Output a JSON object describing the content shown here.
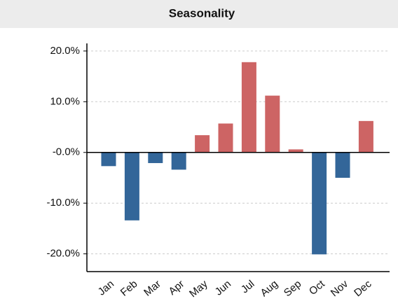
{
  "chart_data": {
    "type": "bar",
    "title": "Seasonality",
    "categories": [
      "Jan",
      "Feb",
      "Mar",
      "Apr",
      "May",
      "Jun",
      "Jul",
      "Aug",
      "Sep",
      "Oct",
      "Nov",
      "Dec"
    ],
    "values": [
      -2.7,
      -13.4,
      -2.1,
      -3.4,
      3.4,
      5.7,
      17.8,
      11.2,
      0.6,
      -20.1,
      -5.0,
      6.2
    ],
    "positive_color": "#cd6464",
    "negative_color": "#336699",
    "ylim": [
      -23.5,
      21.5
    ],
    "yticks": [
      {
        "value": -20,
        "label": "-20.0%"
      },
      {
        "value": -10,
        "label": "-10.0%"
      },
      {
        "value": 0,
        "label": "-0.0%"
      },
      {
        "value": 10,
        "label": "10.0%"
      },
      {
        "value": 20,
        "label": "20.0%"
      }
    ],
    "grid": true
  }
}
